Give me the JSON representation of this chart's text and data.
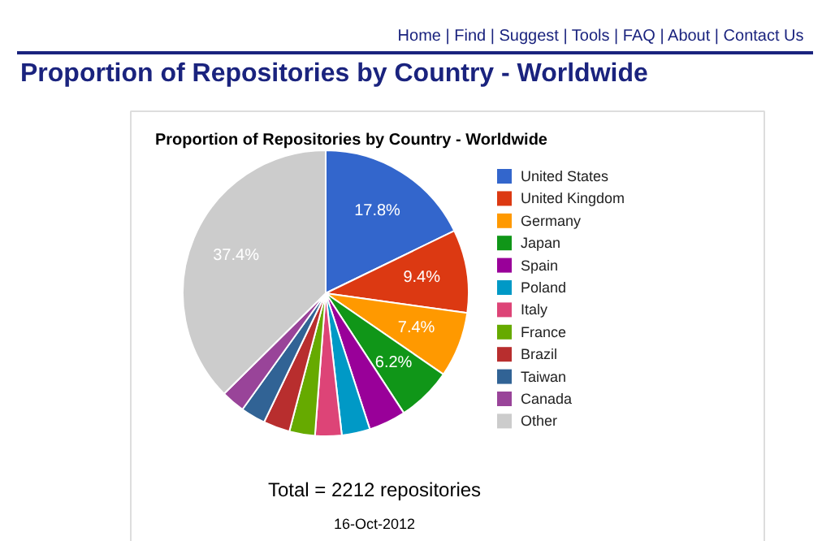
{
  "chart_data": {
    "type": "pie",
    "title": "Proportion of Repositories by Country - Worldwide",
    "categories": [
      "United States",
      "United Kingdom",
      "Germany",
      "Japan",
      "Spain",
      "Poland",
      "Italy",
      "France",
      "Brazil",
      "Taiwan",
      "Canada",
      "Other"
    ],
    "values": [
      17.8,
      9.4,
      7.4,
      6.2,
      4.2,
      3.2,
      3.0,
      2.9,
      3.0,
      2.8,
      2.7,
      37.4
    ],
    "value_labels": [
      "17.8%",
      "9.4%",
      "7.4%",
      "6.2%",
      null,
      null,
      null,
      null,
      null,
      null,
      null,
      "37.4%"
    ],
    "colors": [
      "#3366cc",
      "#dc3912",
      "#ff9900",
      "#109618",
      "#990099",
      "#0099c6",
      "#dd4477",
      "#66aa00",
      "#b82e2e",
      "#316395",
      "#994499",
      "#cccccc"
    ],
    "legend": "right",
    "annotations": [
      "Proportion of Repositories by Country - Worldwide",
      "Home | Find | Suggest | Tools | FAQ | About | Contact Us",
      "Total = 2212 repositories",
      "16-Oct-2012"
    ]
  }
}
